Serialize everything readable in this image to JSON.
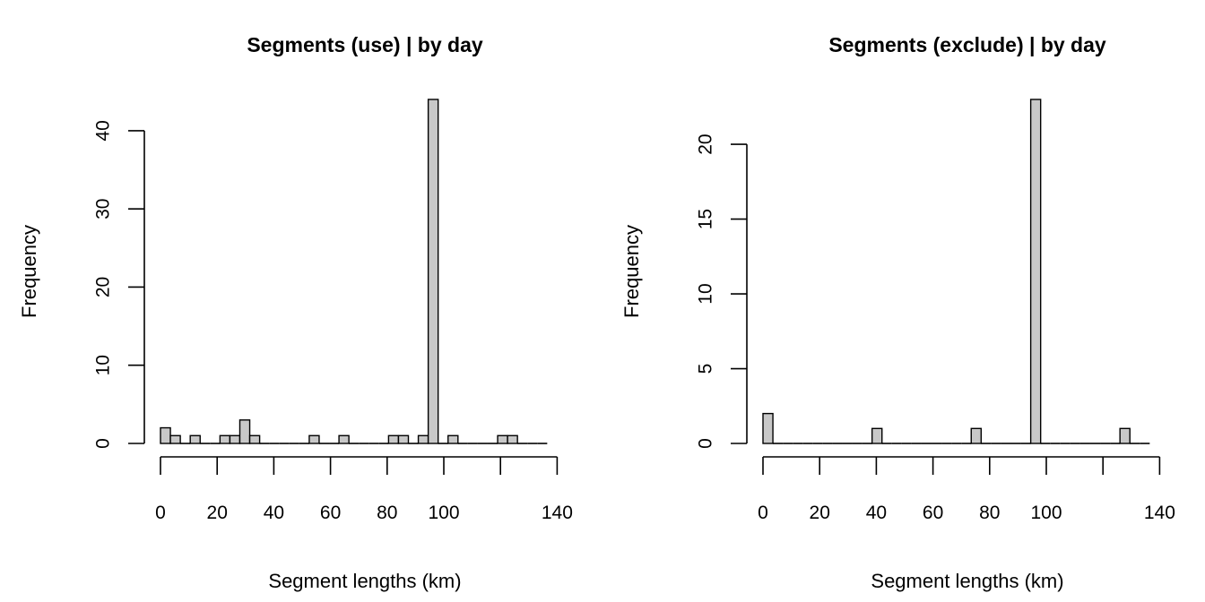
{
  "chart_data": [
    {
      "type": "bar",
      "title": "Segments (use) |  by day",
      "xlabel": "Segment lengths (km)",
      "ylabel": "Frequency",
      "bin_width": 3.5,
      "x_ticks": [
        0,
        20,
        40,
        60,
        80,
        100,
        140
      ],
      "x_axis_range": [
        0,
        140
      ],
      "y_ticks": [
        0,
        10,
        20,
        30,
        40
      ],
      "ylim": [
        0,
        44
      ],
      "bins": [
        {
          "start": 0,
          "count": 2
        },
        {
          "start": 3.5,
          "count": 1
        },
        {
          "start": 7,
          "count": 0
        },
        {
          "start": 10.5,
          "count": 1
        },
        {
          "start": 14,
          "count": 0
        },
        {
          "start": 17.5,
          "count": 0
        },
        {
          "start": 21,
          "count": 1
        },
        {
          "start": 24.5,
          "count": 1
        },
        {
          "start": 28,
          "count": 3
        },
        {
          "start": 31.5,
          "count": 1
        },
        {
          "start": 35,
          "count": 0
        },
        {
          "start": 38.5,
          "count": 0
        },
        {
          "start": 42,
          "count": 0
        },
        {
          "start": 45.5,
          "count": 0
        },
        {
          "start": 49,
          "count": 0
        },
        {
          "start": 52.5,
          "count": 1
        },
        {
          "start": 56,
          "count": 0
        },
        {
          "start": 59.5,
          "count": 0
        },
        {
          "start": 63,
          "count": 1
        },
        {
          "start": 66.5,
          "count": 0
        },
        {
          "start": 70,
          "count": 0
        },
        {
          "start": 73.5,
          "count": 0
        },
        {
          "start": 77,
          "count": 0
        },
        {
          "start": 80.5,
          "count": 1
        },
        {
          "start": 84,
          "count": 1
        },
        {
          "start": 87.5,
          "count": 0
        },
        {
          "start": 91,
          "count": 1
        },
        {
          "start": 94.5,
          "count": 44
        },
        {
          "start": 98,
          "count": 0
        },
        {
          "start": 101.5,
          "count": 1
        },
        {
          "start": 105,
          "count": 0
        },
        {
          "start": 108.5,
          "count": 0
        },
        {
          "start": 112,
          "count": 0
        },
        {
          "start": 115.5,
          "count": 0
        },
        {
          "start": 119,
          "count": 1
        },
        {
          "start": 122.5,
          "count": 1
        },
        {
          "start": 126,
          "count": 0
        },
        {
          "start": 129.5,
          "count": 0
        },
        {
          "start": 133,
          "count": 0
        }
      ]
    },
    {
      "type": "bar",
      "title": "Segments (exclude) |  by day",
      "xlabel": "Segment lengths (km)",
      "ylabel": "Frequency",
      "bin_width": 3.5,
      "x_ticks": [
        0,
        20,
        40,
        60,
        80,
        100,
        140
      ],
      "x_axis_range": [
        0,
        140
      ],
      "y_ticks": [
        0,
        5,
        10,
        15,
        20
      ],
      "ylim": [
        0,
        23
      ],
      "bins": [
        {
          "start": 0,
          "count": 2
        },
        {
          "start": 3.5,
          "count": 0
        },
        {
          "start": 7,
          "count": 0
        },
        {
          "start": 10.5,
          "count": 0
        },
        {
          "start": 14,
          "count": 0
        },
        {
          "start": 17.5,
          "count": 0
        },
        {
          "start": 21,
          "count": 0
        },
        {
          "start": 24.5,
          "count": 0
        },
        {
          "start": 28,
          "count": 0
        },
        {
          "start": 31.5,
          "count": 0
        },
        {
          "start": 35,
          "count": 0
        },
        {
          "start": 38.5,
          "count": 1
        },
        {
          "start": 42,
          "count": 0
        },
        {
          "start": 45.5,
          "count": 0
        },
        {
          "start": 49,
          "count": 0
        },
        {
          "start": 52.5,
          "count": 0
        },
        {
          "start": 56,
          "count": 0
        },
        {
          "start": 59.5,
          "count": 0
        },
        {
          "start": 63,
          "count": 0
        },
        {
          "start": 66.5,
          "count": 0
        },
        {
          "start": 70,
          "count": 0
        },
        {
          "start": 73.5,
          "count": 1
        },
        {
          "start": 77,
          "count": 0
        },
        {
          "start": 80.5,
          "count": 0
        },
        {
          "start": 84,
          "count": 0
        },
        {
          "start": 87.5,
          "count": 0
        },
        {
          "start": 91,
          "count": 0
        },
        {
          "start": 94.5,
          "count": 23
        },
        {
          "start": 98,
          "count": 0
        },
        {
          "start": 101.5,
          "count": 0
        },
        {
          "start": 105,
          "count": 0
        },
        {
          "start": 108.5,
          "count": 0
        },
        {
          "start": 112,
          "count": 0
        },
        {
          "start": 115.5,
          "count": 0
        },
        {
          "start": 119,
          "count": 0
        },
        {
          "start": 122.5,
          "count": 0
        },
        {
          "start": 126,
          "count": 1
        },
        {
          "start": 129.5,
          "count": 0
        },
        {
          "start": 133,
          "count": 0
        }
      ]
    }
  ]
}
